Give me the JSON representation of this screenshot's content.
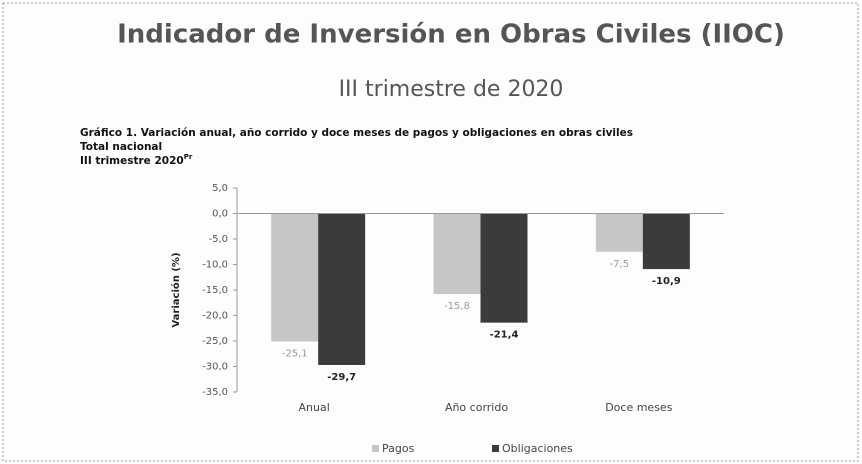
{
  "chart_data": {
    "type": "bar",
    "header_title": "Indicador de Inversión en Obras Civiles (IIOC)",
    "header_subtitle": "III trimestre de 2020",
    "title": "Gráfico 1. Variación anual, año corrido y doce meses de pagos y obligaciones en obras civiles",
    "subtitle": "Total nacional",
    "period": "III trimestre 2020",
    "period_superscript": "Pr",
    "ylabel": "Variación (%)",
    "categories": [
      "Anual",
      "Año corrido",
      "Doce meses"
    ],
    "series": [
      {
        "name": "Pagos",
        "color": "#c6c6c6",
        "values": [
          -25.1,
          -15.8,
          -7.5
        ],
        "value_labels": [
          "-25,1",
          "-15,8",
          "-7,5"
        ]
      },
      {
        "name": "Obligaciones",
        "color": "#3b3b3b",
        "values": [
          -29.7,
          -21.4,
          -10.9
        ],
        "value_labels": [
          "-29,7",
          "-21,4",
          "-10,9"
        ]
      }
    ],
    "ylim": [
      -35,
      5
    ],
    "yticks": [
      {
        "value": 5,
        "label": "5,0"
      },
      {
        "value": 0,
        "label": "0,0"
      },
      {
        "value": -5,
        "label": "-5,0"
      },
      {
        "value": -10,
        "label": "-10,0"
      },
      {
        "value": -15,
        "label": "-15,0"
      },
      {
        "value": -20,
        "label": "-20,0"
      },
      {
        "value": -25,
        "label": "-25,0"
      },
      {
        "value": -30,
        "label": "-30,0"
      },
      {
        "value": -35,
        "label": "-35,0"
      }
    ],
    "grid": false,
    "legend": "bottom"
  }
}
